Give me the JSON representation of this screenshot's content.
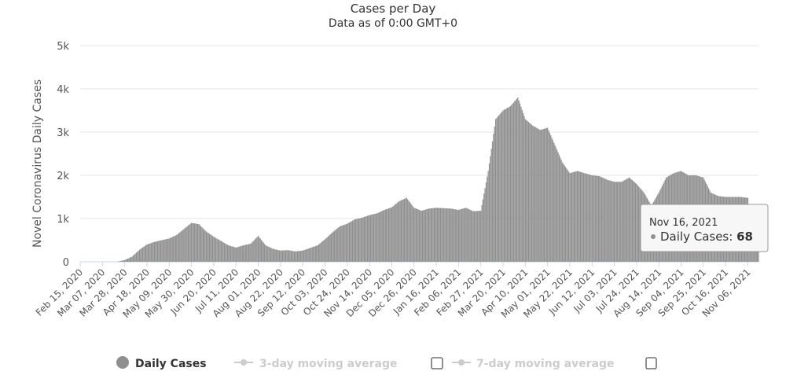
{
  "chart_data": {
    "type": "bar",
    "title": "Cases per Day",
    "subtitle": "Data as of 0:00 GMT+0",
    "ylabel": "Novel Coronavirus Daily Cases",
    "ylim": [
      0,
      5000
    ],
    "yticks": [
      0,
      1000,
      2000,
      3000,
      4000,
      5000
    ],
    "ytick_labels": [
      "0",
      "1k",
      "2k",
      "3k",
      "4k",
      "5k"
    ],
    "grid": true,
    "x_start": "2020-02-15",
    "x_end": "2021-11-16",
    "xtick_labels": [
      "Feb 15, 2020",
      "Mar 07, 2020",
      "Mar 28, 2020",
      "Apr 18, 2020",
      "May 09, 2020",
      "May 30, 2020",
      "Jun 20, 2020",
      "Jul 11, 2020",
      "Aug 01, 2020",
      "Aug 22, 2020",
      "Sep 12, 2020",
      "Oct 03, 2020",
      "Oct 24, 2020",
      "Nov 14, 2020",
      "Dec 05, 2020",
      "Dec 26, 2020",
      "Jan 16, 2021",
      "Feb 06, 2021",
      "Feb 27, 2021",
      "Mar 20, 2021",
      "Apr 10, 2021",
      "May 01, 2021",
      "May 22, 2021",
      "Jun 12, 2021",
      "Jul 03, 2021",
      "Jul 24, 2021",
      "Aug 14, 2021",
      "Sep 04, 2021",
      "Sep 25, 2021",
      "Oct 16, 2021",
      "Nov 06, 2021"
    ],
    "series": [
      {
        "name": "Daily Cases",
        "color": "#8f8f8f",
        "weekly_values": [
          0,
          0,
          0,
          0,
          0,
          0,
          40,
          120,
          280,
          400,
          460,
          500,
          540,
          620,
          760,
          900,
          870,
          700,
          580,
          480,
          380,
          330,
          380,
          420,
          600,
          380,
          300,
          260,
          270,
          240,
          260,
          320,
          380,
          520,
          680,
          820,
          880,
          980,
          1020,
          1080,
          1120,
          1200,
          1260,
          1400,
          1480,
          1250,
          1180,
          1230,
          1250,
          1240,
          1230,
          1200,
          1250,
          1170,
          1180,
          2100,
          3300,
          3500,
          3600,
          3800,
          3300,
          3150,
          3050,
          3100,
          2700,
          2300,
          2050,
          2100,
          2050,
          2000,
          1980,
          1900,
          1850,
          1850,
          1950,
          1800,
          1600,
          1300,
          1600,
          1950,
          2050,
          2100,
          2000,
          2000,
          1950,
          1600,
          1520,
          1500,
          1500,
          1500,
          1480,
          480,
          460,
          450,
          420,
          400,
          360,
          300,
          240,
          180,
          140,
          110,
          90,
          80,
          68
        ]
      },
      {
        "name": "3-day moving average",
        "visible": false
      },
      {
        "name": "7-day moving average",
        "visible": false
      }
    ]
  },
  "tooltip": {
    "date": "Nov 16, 2021",
    "series_label": "Daily Cases: ",
    "value": "68"
  },
  "legend": {
    "items": [
      "Daily Cases",
      "3-day moving average",
      "7-day moving average"
    ]
  }
}
